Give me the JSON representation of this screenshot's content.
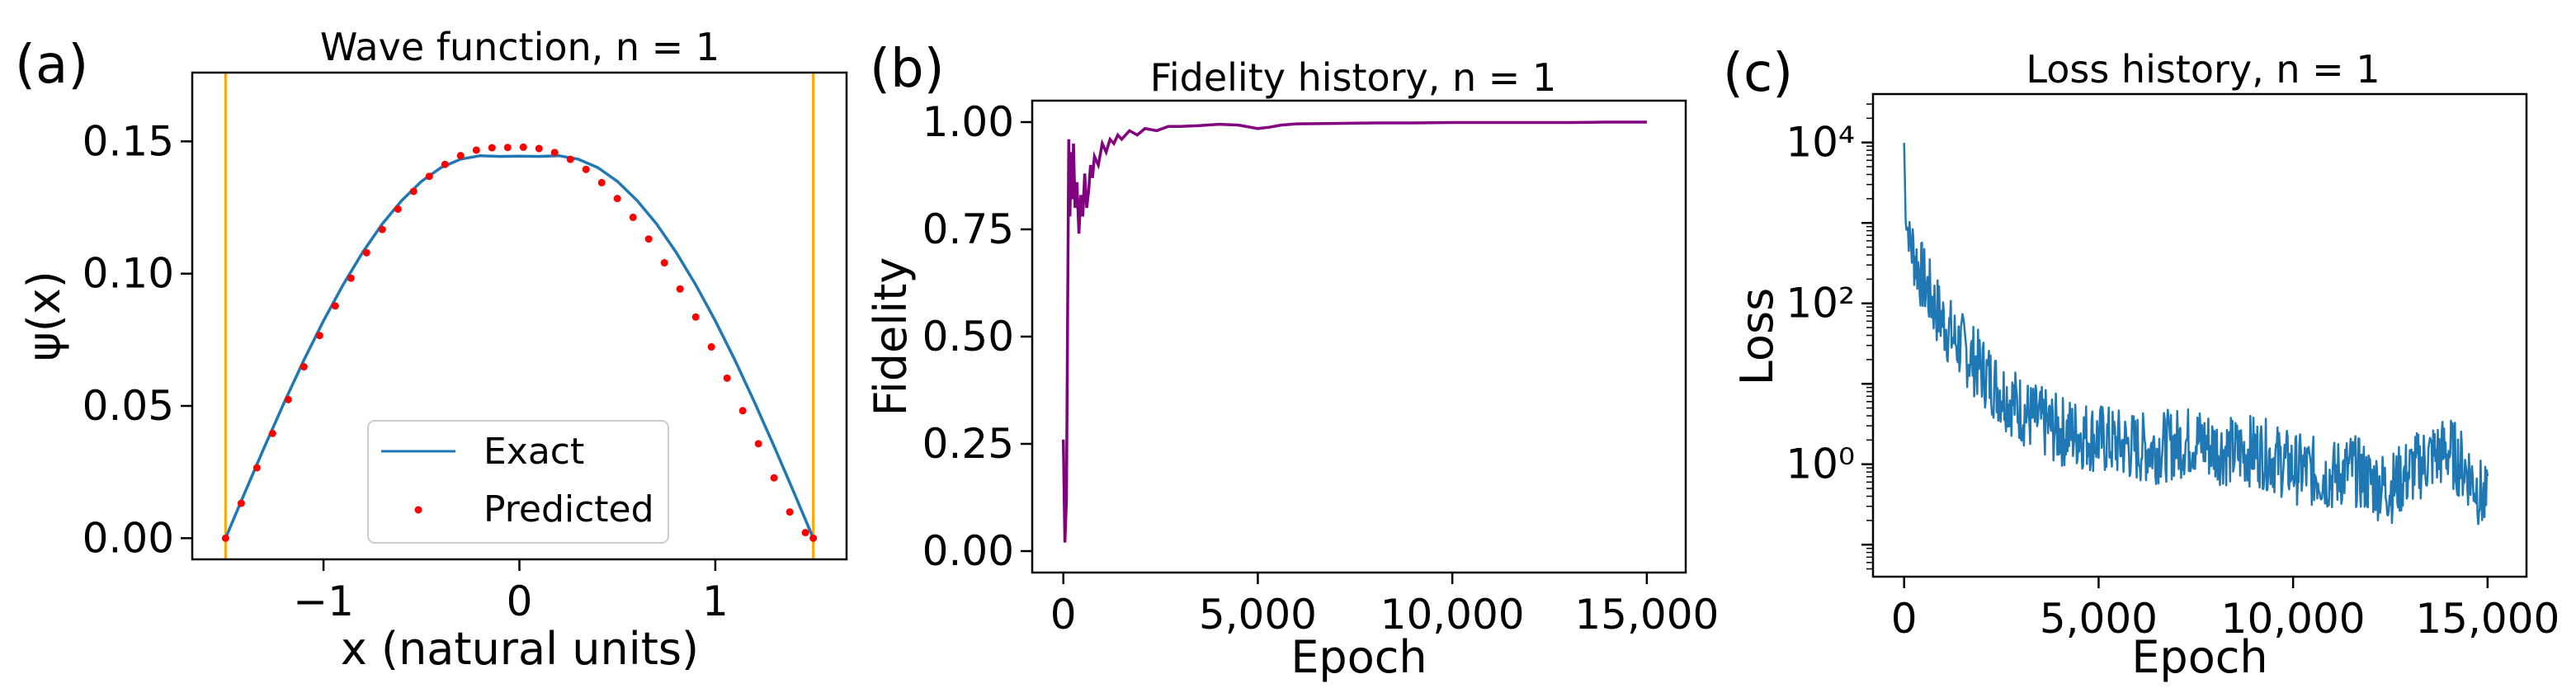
{
  "figure": {
    "panel_labels": [
      "(a)",
      "(b)",
      "(c)"
    ]
  },
  "chart_data": [
    {
      "type": "line",
      "title": "Wave function, n = 1",
      "xlabel": "x (natural units)",
      "ylabel": "ψ(x)",
      "xlim": [
        -1.67,
        1.67
      ],
      "ylim": [
        -0.008,
        0.176
      ],
      "xticks": [
        -1,
        0,
        1
      ],
      "xtick_labels": [
        "−1",
        "0",
        "1"
      ],
      "yticks": [
        0.0,
        0.05,
        0.1,
        0.15
      ],
      "ytick_labels": [
        "0.00",
        "0.05",
        "0.10",
        "0.15"
      ],
      "grid": false,
      "legend_position": "lower-center",
      "well_boundaries": [
        -1.5,
        1.5
      ],
      "boundary_color": "#ffa500",
      "series": [
        {
          "name": "Exact",
          "style": "line",
          "color": "#1f77b4",
          "x": [
            -1.5,
            -1.4,
            -1.3,
            -1.2,
            -1.1,
            -1.0,
            -0.9,
            -0.8,
            -0.7,
            -0.6,
            -0.5,
            -0.4,
            -0.3,
            -0.2,
            -0.1,
            0.0,
            0.1,
            0.2,
            0.3,
            0.4,
            0.5,
            0.6,
            0.7,
            0.8,
            0.9,
            1.0,
            1.1,
            1.2,
            1.3,
            1.4,
            1.5
          ],
          "y": [
            0.0,
            0.0175,
            0.0347,
            0.0514,
            0.0673,
            0.0822,
            0.0958,
            0.1081,
            0.1188,
            0.1277,
            0.1349,
            0.1401,
            0.1433,
            0.1446,
            0.1443,
            0.1444,
            0.1443,
            0.1446,
            0.1433,
            0.1401,
            0.1349,
            0.1277,
            0.1188,
            0.1081,
            0.0958,
            0.0822,
            0.0673,
            0.0514,
            0.0347,
            0.0175,
            0.0
          ]
        },
        {
          "name": "Predicted",
          "style": "scatter",
          "color": "#ff0000",
          "x": [
            -1.5,
            -1.42,
            -1.34,
            -1.26,
            -1.18,
            -1.1,
            -1.02,
            -0.94,
            -0.86,
            -0.78,
            -0.7,
            -0.62,
            -0.54,
            -0.46,
            -0.38,
            -0.3,
            -0.22,
            -0.14,
            -0.06,
            0.02,
            0.1,
            0.18,
            0.26,
            0.34,
            0.42,
            0.5,
            0.58,
            0.66,
            0.74,
            0.82,
            0.9,
            0.98,
            1.06,
            1.14,
            1.22,
            1.3,
            1.38,
            1.46,
            1.5
          ],
          "y": [
            0.0,
            0.0132,
            0.0266,
            0.0396,
            0.0524,
            0.0648,
            0.0766,
            0.0878,
            0.0983,
            0.1079,
            0.1167,
            0.1244,
            0.1311,
            0.1368,
            0.1413,
            0.1446,
            0.1467,
            0.1476,
            0.1477,
            0.1478,
            0.1473,
            0.1458,
            0.1432,
            0.1394,
            0.1344,
            0.1284,
            0.1213,
            0.1131,
            0.1041,
            0.0942,
            0.0836,
            0.0723,
            0.0605,
            0.0482,
            0.0357,
            0.0228,
            0.0099,
            0.0021,
            0.0
          ]
        }
      ]
    },
    {
      "type": "line",
      "title": "Fidelity history, n = 1",
      "xlabel": "Epoch",
      "ylabel": "Fidelity",
      "xlim": [
        -800,
        16000
      ],
      "ylim": [
        -0.05,
        1.05
      ],
      "xticks": [
        0,
        5000,
        10000,
        15000
      ],
      "xtick_labels": [
        "0",
        "5,000",
        "10,000",
        "15,000"
      ],
      "yticks": [
        0.0,
        0.25,
        0.5,
        0.75,
        1.0
      ],
      "ytick_labels": [
        "0.00",
        "0.25",
        "0.50",
        "0.75",
        "1.00"
      ],
      "grid": false,
      "series": [
        {
          "color": "#800080",
          "x": [
            0,
            40,
            80,
            110,
            140,
            170,
            200,
            230,
            260,
            300,
            350,
            400,
            450,
            500,
            550,
            600,
            650,
            700,
            750,
            800,
            900,
            1000,
            1100,
            1200,
            1300,
            1400,
            1500,
            1700,
            1900,
            2100,
            2400,
            2700,
            3000,
            3500,
            4000,
            4500,
            5000,
            5300,
            5600,
            6000,
            7000,
            8000,
            9000,
            10000,
            11000,
            12000,
            13000,
            14000,
            15000
          ],
          "y": [
            0.26,
            0.02,
            0.12,
            0.55,
            0.96,
            0.78,
            0.93,
            0.82,
            0.95,
            0.8,
            0.86,
            0.74,
            0.83,
            0.78,
            0.88,
            0.8,
            0.84,
            0.9,
            0.87,
            0.92,
            0.9,
            0.95,
            0.93,
            0.96,
            0.95,
            0.97,
            0.96,
            0.98,
            0.97,
            0.985,
            0.98,
            0.99,
            0.99,
            0.992,
            0.995,
            0.993,
            0.985,
            0.988,
            0.993,
            0.996,
            0.997,
            0.998,
            0.998,
            0.999,
            0.999,
            0.999,
            0.999,
            1.0,
            1.0
          ]
        }
      ]
    },
    {
      "type": "line",
      "title": "Loss history, n = 1",
      "xlabel": "Epoch",
      "ylabel": "Loss",
      "xscale": "linear",
      "yscale": "log",
      "xlim": [
        -800,
        16000
      ],
      "ylim": [
        0.04,
        40000
      ],
      "xticks": [
        0,
        5000,
        10000,
        15000
      ],
      "xtick_labels": [
        "0",
        "5,000",
        "10,000",
        "15,000"
      ],
      "yticks": [
        1,
        100,
        10000
      ],
      "ytick_labels": [
        "10⁰",
        "10²",
        "10⁴"
      ],
      "grid": false,
      "series": [
        {
          "color": "#1f77b4",
          "x": [
            0,
            20,
            50,
            100,
            200,
            400,
            600,
            800,
            1000,
            1300,
            1600,
            2000,
            2400,
            2800,
            3200,
            3600,
            4000,
            4500,
            5000,
            5500,
            6000,
            6500,
            7000,
            7500,
            8000,
            8500,
            9000,
            9500,
            10000,
            10500,
            11000,
            11500,
            12000,
            12500,
            13000,
            13500,
            14000,
            14500,
            15000
          ],
          "y": [
            10000,
            3000,
            1200,
            800,
            500,
            250,
            150,
            90,
            60,
            35,
            25,
            15,
            9,
            6,
            4,
            3.2,
            2.6,
            2.4,
            2.1,
            1.8,
            1.6,
            1.6,
            1.8,
            2.0,
            1.6,
            1.4,
            1.5,
            1.2,
            0.9,
            0.8,
            0.7,
            0.9,
            0.6,
            0.5,
            0.8,
            1.2,
            1.5,
            0.8,
            0.3
          ]
        }
      ]
    }
  ]
}
